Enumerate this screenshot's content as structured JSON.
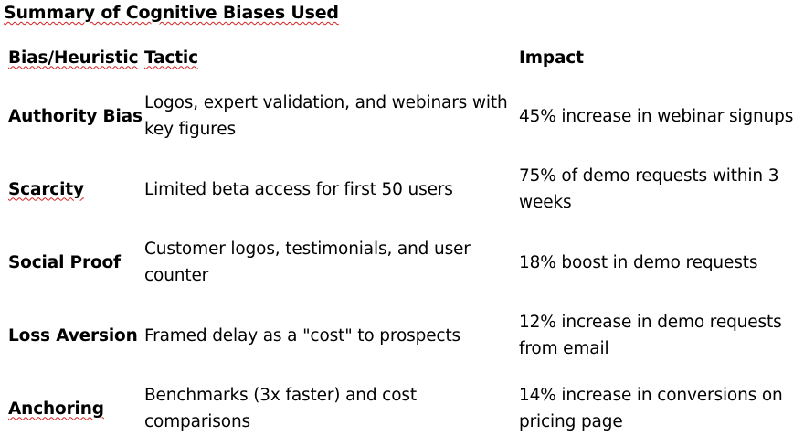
{
  "document": {
    "title": "Summary of Cognitive Biases Used"
  },
  "table": {
    "headers": [
      "Bias/Heuristic",
      "Tactic",
      "Impact"
    ],
    "rows": [
      {
        "bias": "Authority Bias",
        "tactic": "Logos, expert validation, and webinars with key figures",
        "impact": "45% increase in webinar signups"
      },
      {
        "bias": "Scarcity",
        "tactic": "Limited beta access for first 50 users",
        "impact": "75% of demo requests within 3 weeks"
      },
      {
        "bias": "Social Proof",
        "tactic": "Customer logos, testimonials, and user counter",
        "impact": "18% boost in demo requests"
      },
      {
        "bias": "Loss Aversion",
        "tactic": "Framed delay as a \"cost\" to prospects",
        "impact": "12% increase in demo requests from email"
      },
      {
        "bias": "Anchoring",
        "tactic": "Benchmarks (3x faster) and cost comparisons",
        "impact": "14% increase in conversions on pricing page"
      }
    ]
  }
}
